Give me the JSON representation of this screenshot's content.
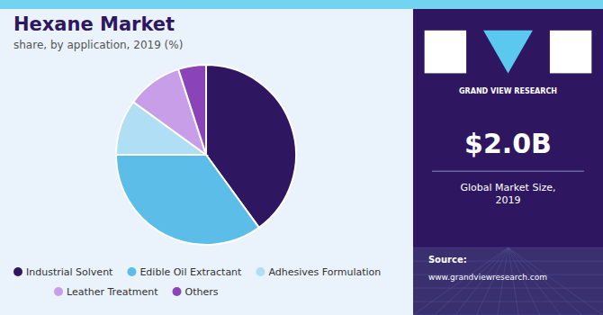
{
  "chart_data": {
    "type": "pie",
    "title": "Hexane Market",
    "subtitle": "share, by application, 2019 (%)",
    "categories": [
      "Industrial Solvent",
      "Edible Oil Extractant",
      "Adhesives Formulation",
      "Leather Treatment",
      "Others"
    ],
    "values": [
      40,
      35,
      10,
      10,
      5
    ],
    "colors": [
      "#2e1760",
      "#5bbde8",
      "#b0dff5",
      "#c89ee8",
      "#8b44b8"
    ],
    "legend": "bottom",
    "annotations": [
      "GRAND VIEW RESEARCH",
      "$2.0B",
      "Global Market Size,\n2019",
      "Source:",
      "www.grandviewresearch.com"
    ]
  }
}
